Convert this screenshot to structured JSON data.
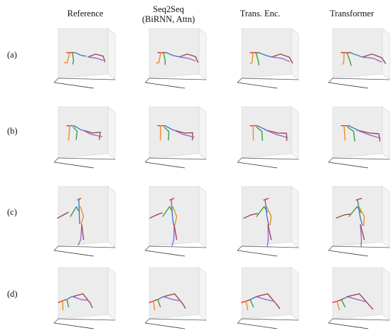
{
  "columns": [
    {
      "line1": "Reference",
      "line2": ""
    },
    {
      "line1": "Seq2Seq",
      "line2": "(BiRNN, Attn)"
    },
    {
      "line1": "Trans. Enc.",
      "line2": ""
    },
    {
      "line1": "Transformer",
      "line2": ""
    }
  ],
  "rows": [
    {
      "label": "(a)"
    },
    {
      "label": "(b)"
    },
    {
      "label": "(c)"
    },
    {
      "label": "(d)"
    }
  ],
  "colors": {
    "spine": "#3b7fc4",
    "left_leg": "#ef8c24",
    "right_leg": "#3aa047",
    "left_arm": "#9c4a4a",
    "right_arm": "#9a6ad0",
    "pelvis": "#d33b2c",
    "box_face": "#ececec",
    "box_edge": "#d2d2d2"
  }
}
